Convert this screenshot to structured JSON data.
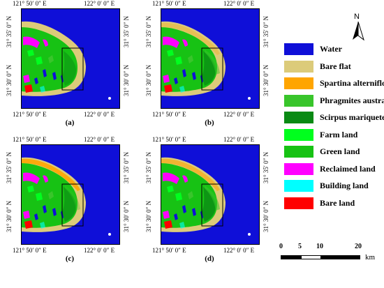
{
  "coord_labels": {
    "lon_left": "121° 50′ 0″ E",
    "lon_right": "122° 0′ 0″ E",
    "lat_top": "31° 35′ 0″ N",
    "lat_bottom": "31° 30′ 0″ N"
  },
  "panels": [
    {
      "label": "(a)"
    },
    {
      "label": "(b)"
    },
    {
      "label": "(c)"
    },
    {
      "label": "(d)"
    }
  ],
  "legend": [
    {
      "label": "Water",
      "color": "#0f0fd8"
    },
    {
      "label": "Bare flat",
      "color": "#dccb7a"
    },
    {
      "label": "Spartina alterniflora",
      "color": "#ffa500"
    },
    {
      "label": "Phragmites australis",
      "color": "#39c52b"
    },
    {
      "label": "Scirpus mariqueter",
      "color": "#0a8a14"
    },
    {
      "label": "Farm land",
      "color": "#00ff1e"
    },
    {
      "label": "Green land",
      "color": "#17c214"
    },
    {
      "label": "Reclaimed land",
      "color": "#ff00ff"
    },
    {
      "label": "Building land",
      "color": "#00ffff"
    },
    {
      "label": "Bare land",
      "color": "#ff0000"
    }
  ],
  "north_arrow": {
    "label": "N",
    "icon": "north-arrow-icon"
  },
  "scale_bar": {
    "ticks": [
      "0",
      "5",
      "10",
      "20"
    ],
    "unit": "km"
  }
}
